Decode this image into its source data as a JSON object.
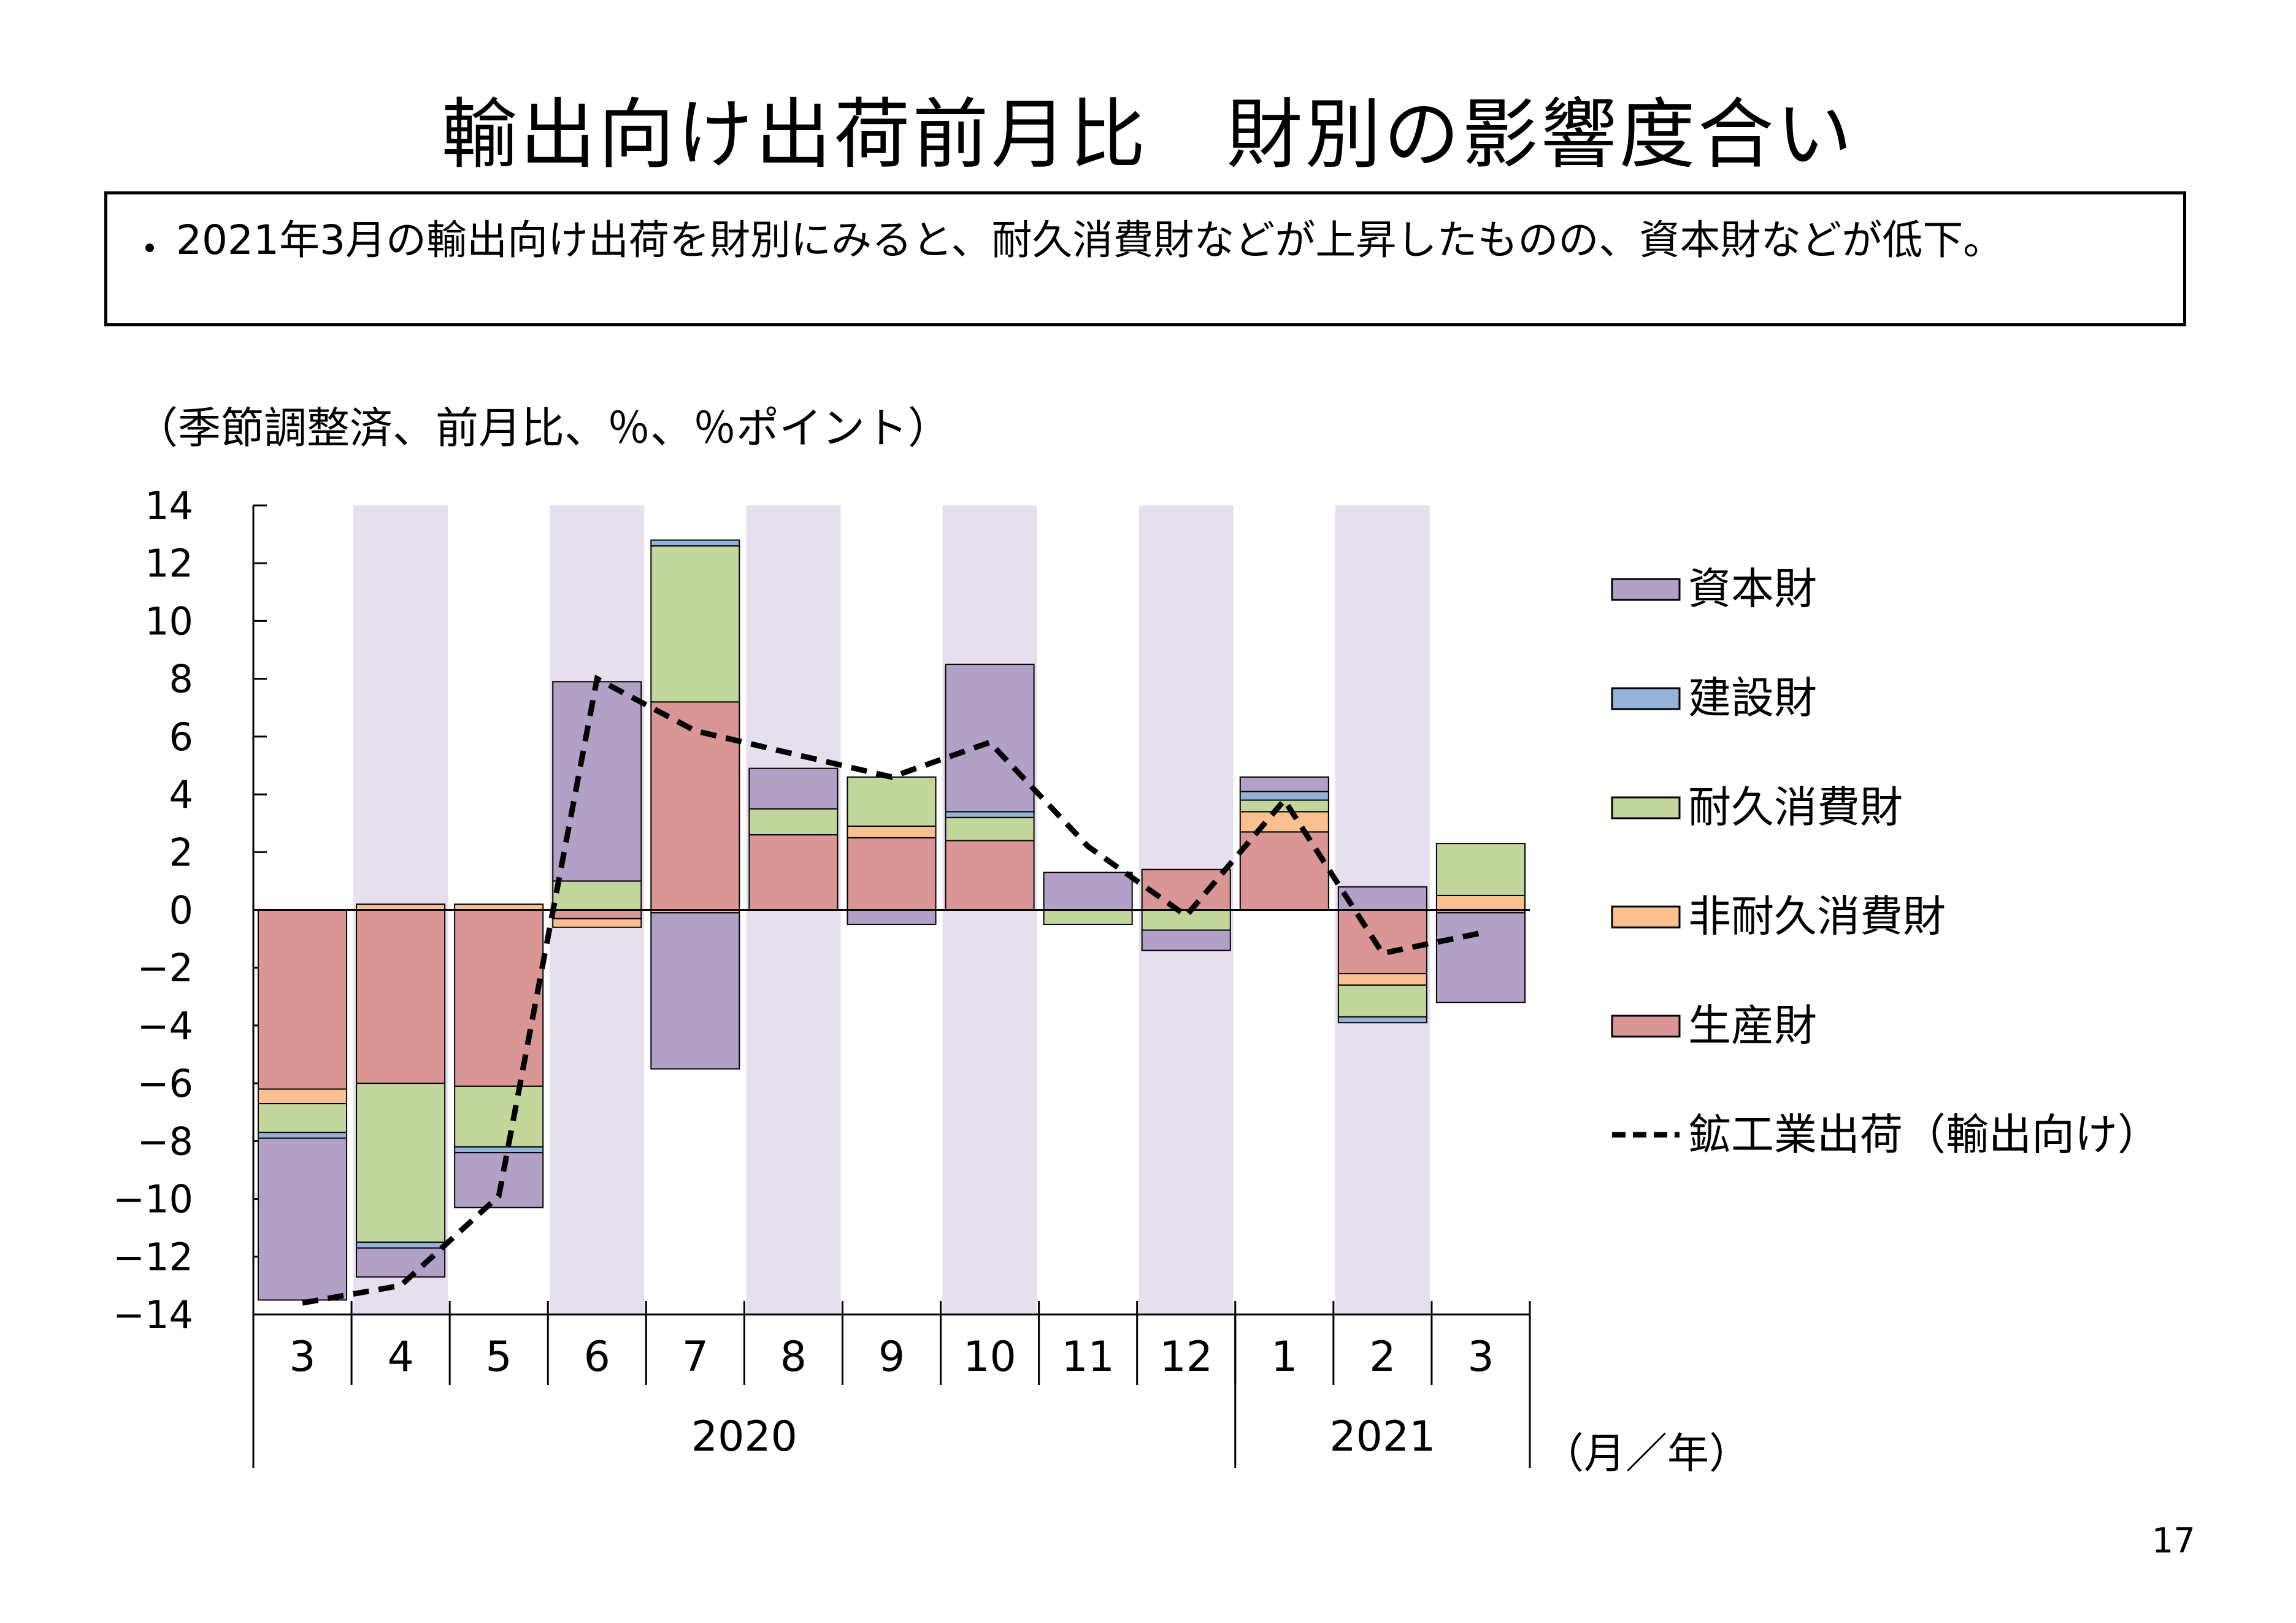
{
  "title": "輸出向け出荷前月比　財別の影響度合い",
  "summary": {
    "bullet": "・",
    "text": "2021年3月の輸出向け出荷を財別にみると、耐久消費財などが上昇したものの、資本財などが低下。"
  },
  "unit_label": "（季節調整済、前月比、％、％ポイント）",
  "page_number": "17",
  "chart_data": {
    "type": "bar",
    "stacked": true,
    "ylim": [
      -14,
      14
    ],
    "yticks": [
      14,
      12,
      10,
      8,
      6,
      4,
      2,
      0,
      -2,
      -4,
      -6,
      -8,
      -10,
      -12,
      -14
    ],
    "categories": [
      "3",
      "4",
      "5",
      "6",
      "7",
      "8",
      "9",
      "10",
      "11",
      "12",
      "1",
      "2",
      "3"
    ],
    "year_labels": [
      {
        "label": "2020",
        "from": 0,
        "to": 9
      },
      {
        "label": "2021",
        "from": 10,
        "to": 12
      }
    ],
    "x_unit": "（月／年）",
    "shaded_months": [
      1,
      3,
      5,
      7,
      9,
      11
    ],
    "series": [
      {
        "name": "生産財",
        "color": "#d99694",
        "values": [
          -6.2,
          -6.0,
          -6.1,
          -0.3,
          7.2,
          2.6,
          2.5,
          2.4,
          0.0,
          1.4,
          2.7,
          -2.2,
          -0.1
        ]
      },
      {
        "name": "非耐久消費財",
        "color": "#fac090",
        "values": [
          -0.5,
          0.2,
          0.2,
          -0.3,
          -0.1,
          0.0,
          0.4,
          0.0,
          0.0,
          0.0,
          0.7,
          -0.4,
          0.5
        ]
      },
      {
        "name": "耐久消費財",
        "color": "#c3d69b",
        "values": [
          -1.0,
          -5.5,
          -2.1,
          1.0,
          5.4,
          0.9,
          1.7,
          0.8,
          -0.5,
          -0.7,
          0.4,
          -1.1,
          1.8
        ]
      },
      {
        "name": "建設財",
        "color": "#95b3d7",
        "values": [
          -0.2,
          -0.2,
          -0.2,
          0.0,
          0.2,
          0.0,
          0.0,
          0.2,
          0.0,
          0.0,
          0.3,
          -0.2,
          0.0
        ]
      },
      {
        "name": "資本財",
        "color": "#b2a1c7",
        "values": [
          -5.6,
          -1.0,
          -1.9,
          6.9,
          -5.4,
          1.4,
          -0.5,
          5.1,
          1.3,
          -0.7,
          0.5,
          0.8,
          -3.1
        ]
      }
    ],
    "line": {
      "name": "鉱工業出荷（輸出向け）",
      "values": [
        -13.6,
        -13.0,
        -9.9,
        8.0,
        6.2,
        5.4,
        4.6,
        5.8,
        2.2,
        -0.2,
        3.8,
        -1.5,
        -0.8
      ]
    },
    "legend_order": [
      "資本財",
      "建設財",
      "耐久消費財",
      "非耐久消費財",
      "生産財",
      "鉱工業出荷（輸出向け）"
    ],
    "legend_position": "right"
  }
}
